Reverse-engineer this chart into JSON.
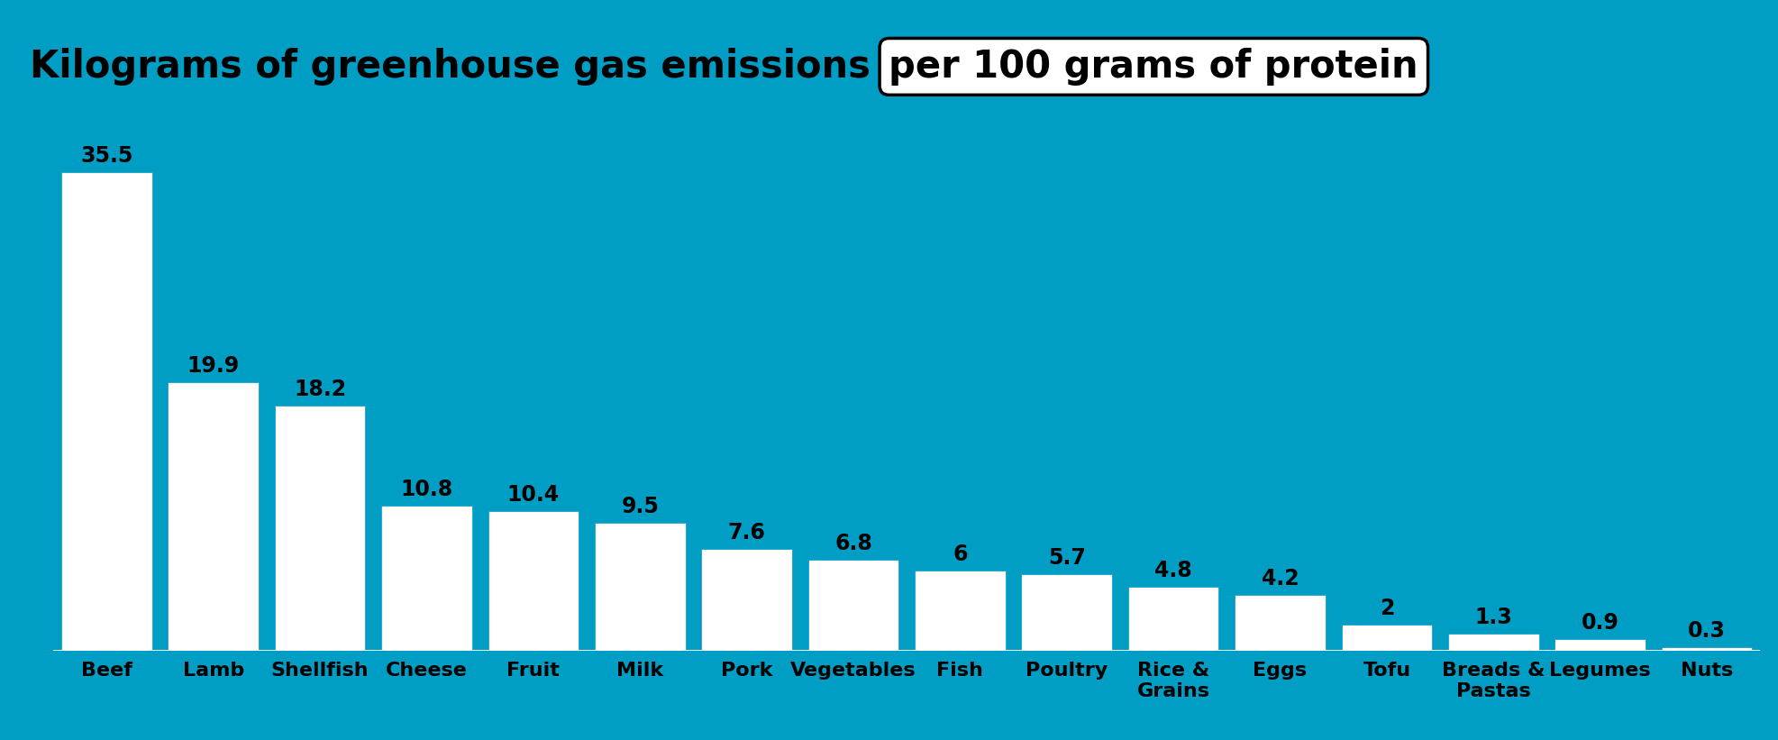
{
  "categories": [
    "Beef",
    "Lamb",
    "Shellfish",
    "Cheese",
    "Fruit",
    "Milk",
    "Pork",
    "Vegetables",
    "Fish",
    "Poultry",
    "Rice &\nGrains",
    "Eggs",
    "Tofu",
    "Breads &\nPastas",
    "Legumes",
    "Nuts"
  ],
  "values": [
    35.5,
    19.9,
    18.2,
    10.8,
    10.4,
    9.5,
    7.6,
    6.8,
    6.0,
    5.7,
    4.8,
    4.2,
    2.0,
    1.3,
    0.9,
    0.3
  ],
  "bar_color": "#ffffff",
  "background_color": "#009DC4",
  "title_part1": "Kilograms of greenhouse gas emissions ",
  "title_part2": "per 100 grams of protein",
  "title_fontsize": 30,
  "label_fontsize": 17,
  "tick_fontsize": 16,
  "ylim": [
    0,
    40
  ],
  "bar_width": 0.85,
  "value_labels": [
    "35.5",
    "19.9",
    "18.2",
    "10.8",
    "10.4",
    "9.5",
    "7.6",
    "6.8",
    "6",
    "5.7",
    "4.8",
    "4.2",
    "2",
    "1.3",
    "0.9",
    "0.3"
  ]
}
